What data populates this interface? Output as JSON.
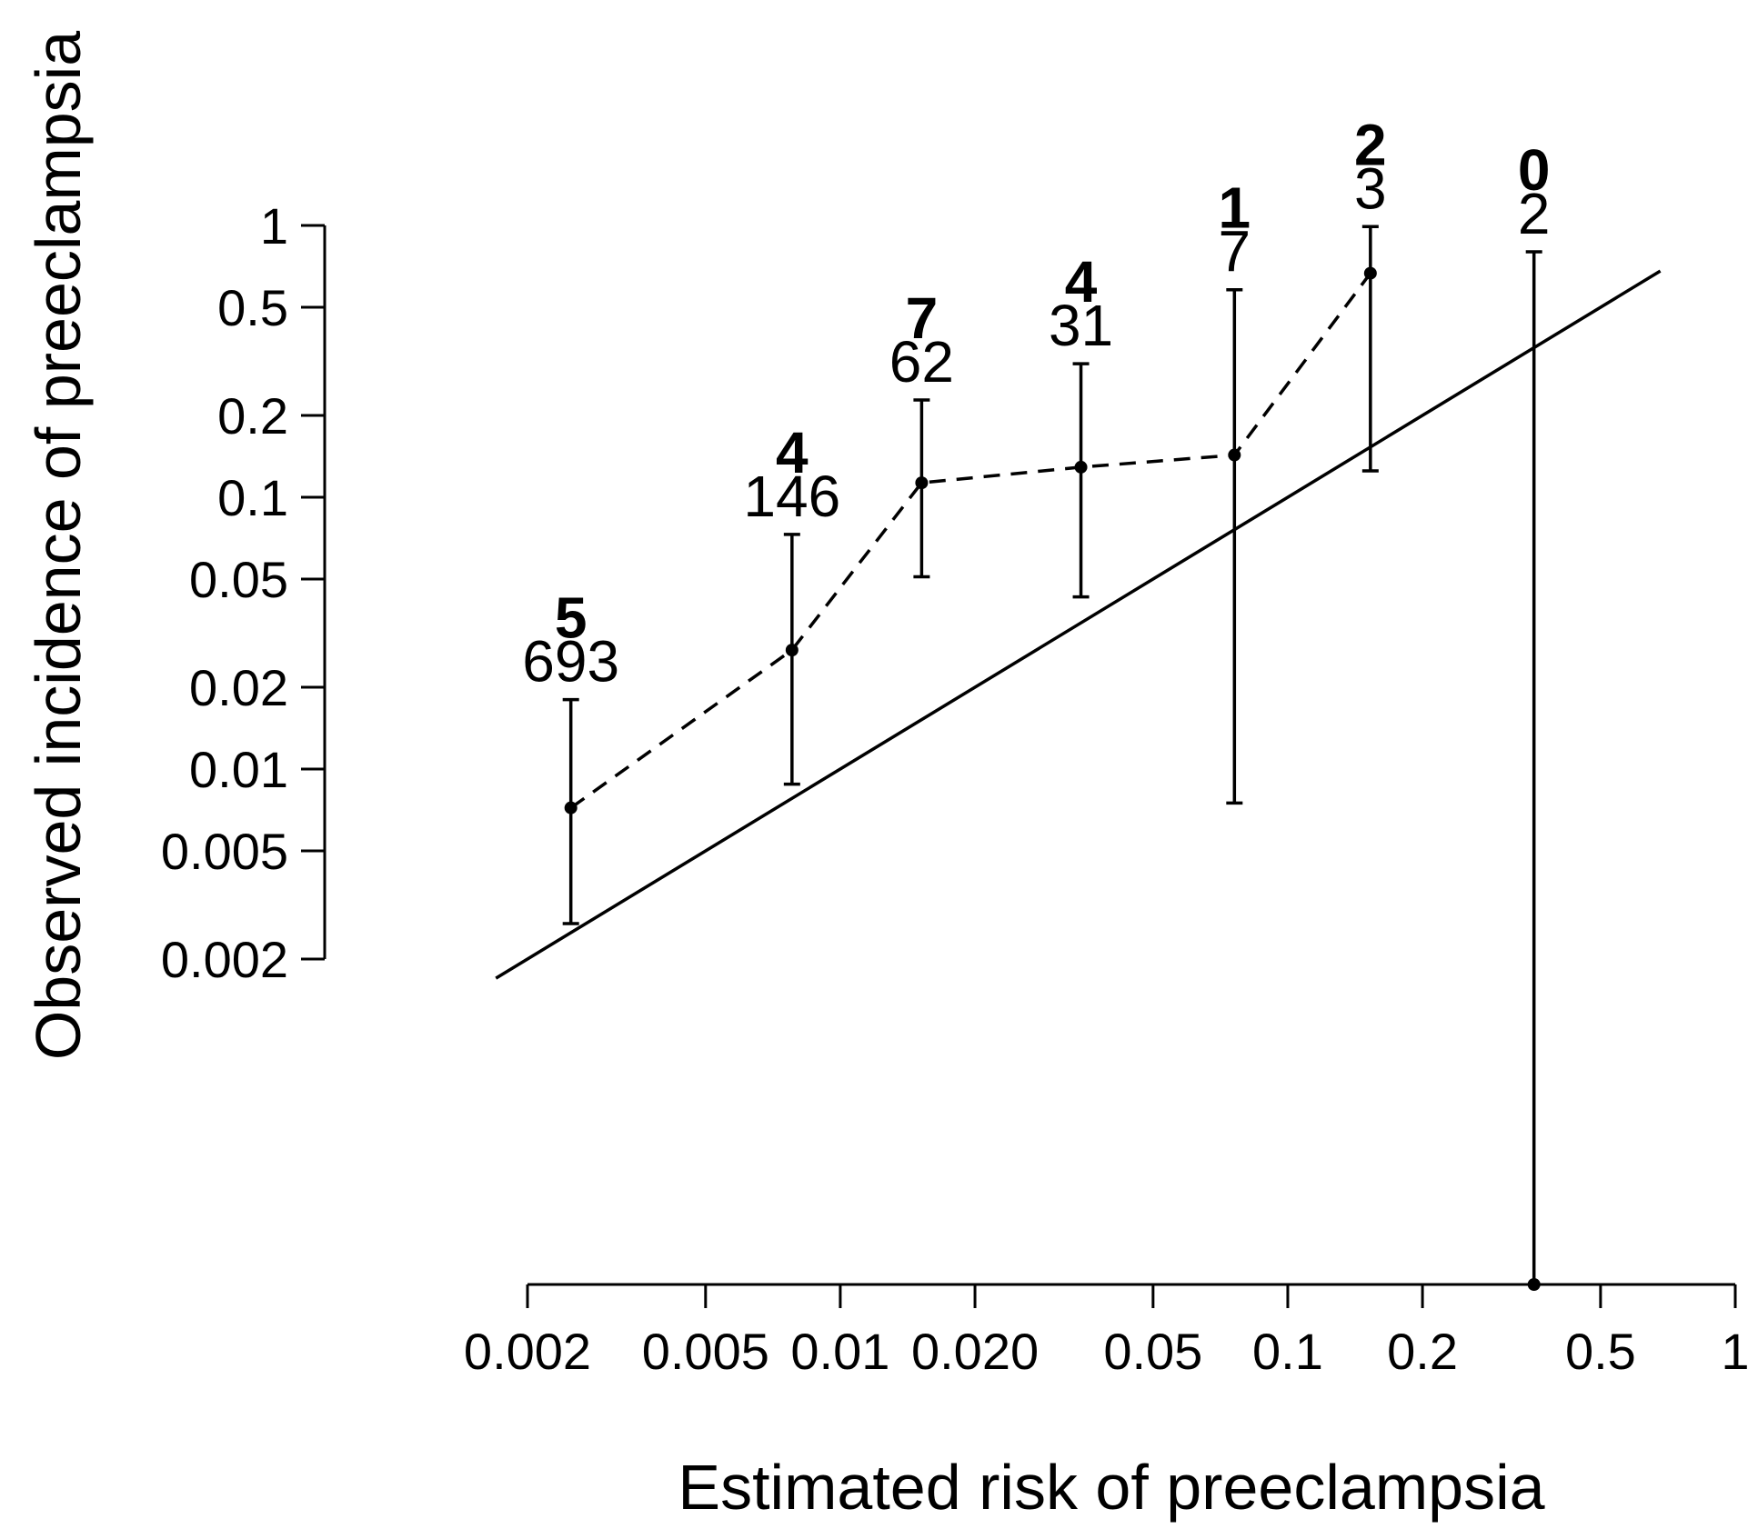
{
  "chart_data": {
    "type": "scatter",
    "xlabel": "Estimated risk of preeclampsia",
    "ylabel": "Observed incidence of preeclampsia",
    "x_scale": "log",
    "y_scale": "log",
    "xlim": [
      0.002,
      1
    ],
    "ylim": [
      0.002,
      1
    ],
    "x_ticks": [
      {
        "value": 0.002,
        "label": "0.002"
      },
      {
        "value": 0.005,
        "label": "0.005"
      },
      {
        "value": 0.01,
        "label": "0.01"
      },
      {
        "value": 0.02,
        "label": "0.020"
      },
      {
        "value": 0.05,
        "label": "0.05"
      },
      {
        "value": 0.1,
        "label": "0.1"
      },
      {
        "value": 0.2,
        "label": "0.2"
      },
      {
        "value": 0.5,
        "label": "0.5"
      },
      {
        "value": 1,
        "label": "1"
      }
    ],
    "y_ticks": [
      {
        "value": 1,
        "label": "1"
      },
      {
        "value": 0.5,
        "label": "0.5"
      },
      {
        "value": 0.2,
        "label": "0.2"
      },
      {
        "value": 0.1,
        "label": "0.1"
      },
      {
        "value": 0.05,
        "label": "0.05"
      },
      {
        "value": 0.02,
        "label": "0.02"
      },
      {
        "value": 0.01,
        "label": "0.01"
      },
      {
        "value": 0.005,
        "label": "0.005"
      },
      {
        "value": 0.002,
        "label": "0.002"
      }
    ],
    "reference_line": {
      "style": "solid",
      "x": [
        0.0017,
        0.68
      ],
      "y": [
        0.0017,
        0.68
      ]
    },
    "connector_style": "dashed",
    "points": [
      {
        "x": 0.0025,
        "y": 0.0072,
        "lower": 0.0027,
        "upper": 0.018,
        "events": "5",
        "n": "693"
      },
      {
        "x": 0.0078,
        "y": 0.0274,
        "lower": 0.0088,
        "upper": 0.073,
        "events": "4",
        "n": "146"
      },
      {
        "x": 0.0152,
        "y": 0.113,
        "lower": 0.051,
        "upper": 0.228,
        "events": "7",
        "n": "62"
      },
      {
        "x": 0.0345,
        "y": 0.129,
        "lower": 0.043,
        "upper": 0.31,
        "events": "4",
        "n": "31"
      },
      {
        "x": 0.076,
        "y": 0.143,
        "lower": 0.0075,
        "upper": 0.58,
        "events": "1",
        "n": "7"
      },
      {
        "x": 0.153,
        "y": 0.667,
        "lower": 0.125,
        "upper": 0.99,
        "events": "2",
        "n": "3"
      },
      {
        "x": 0.355,
        "y": 0,
        "lower": 0,
        "upper": 0.8,
        "events": "0",
        "n": "2"
      }
    ]
  }
}
